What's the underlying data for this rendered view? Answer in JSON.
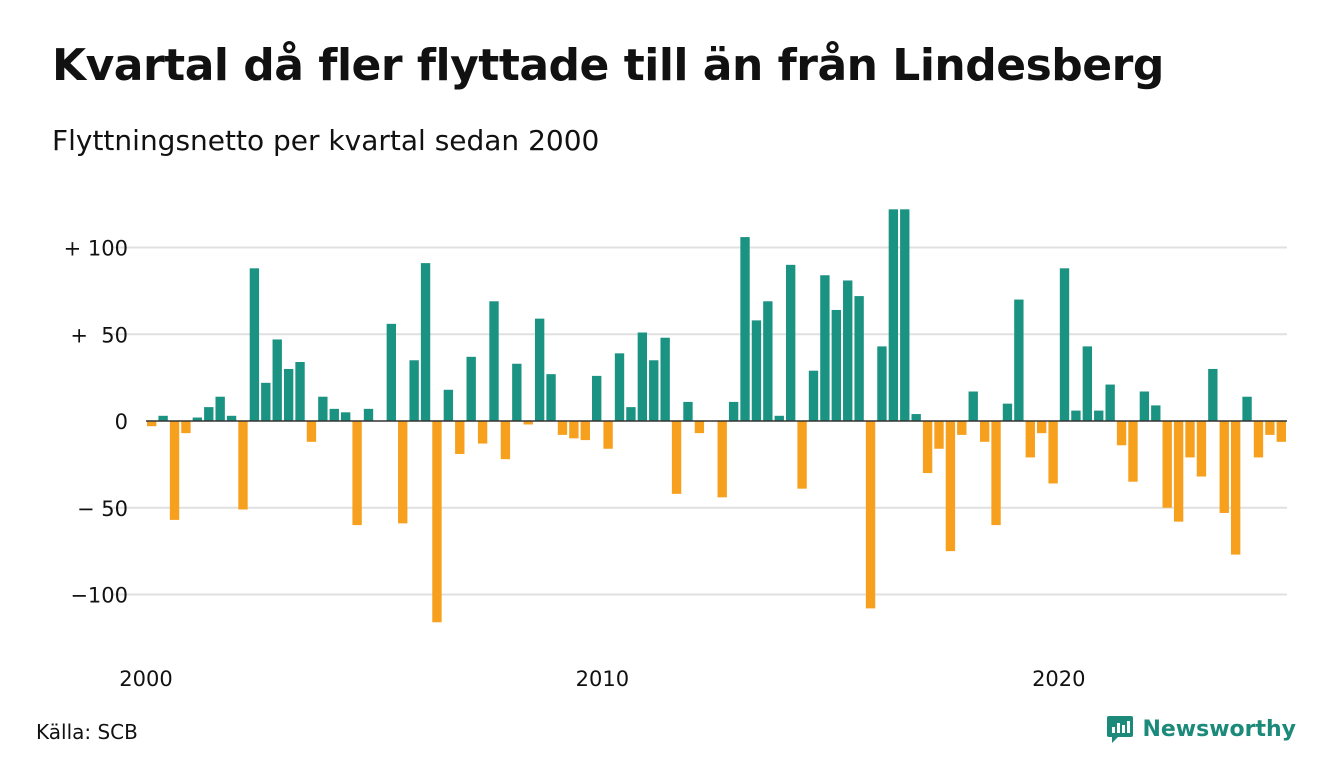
{
  "title": "Kvartal då fler flyttade till än från Lindesberg",
  "subtitle": "Flyttningsnetto per kvartal sedan 2000",
  "source": "Källa: SCB",
  "brand": "Newsworthy",
  "colors": {
    "positive": "#1b9382",
    "negative": "#f6a01e",
    "grid": "#e0e0e0",
    "zero_line": "#333333",
    "brand": "#1b8a7a"
  },
  "chart_data": {
    "type": "bar",
    "title": "Kvartal då fler flyttade till än från Lindesberg",
    "subtitle": "Flyttningsnetto per kvartal sedan 2000",
    "xlabel": "",
    "ylabel": "",
    "ylim": [
      -125,
      130
    ],
    "grid": true,
    "x_start": 2000,
    "y_ticks": [
      {
        "value": 100,
        "label": "+ 100"
      },
      {
        "value": 50,
        "label": "+  50"
      },
      {
        "value": 0,
        "label": "0"
      },
      {
        "value": -50,
        "label": "− 50"
      },
      {
        "value": -100,
        "label": "−100"
      }
    ],
    "x_ticks": [
      {
        "year": 2000,
        "label": "2000"
      },
      {
        "year": 2010,
        "label": "2010"
      },
      {
        "year": 2020,
        "label": "2020"
      }
    ],
    "values": [
      -3,
      3,
      -57,
      -7,
      2,
      8,
      14,
      3,
      -51,
      88,
      22,
      47,
      30,
      34,
      -12,
      14,
      7,
      5,
      -60,
      7,
      0,
      56,
      -59,
      35,
      91,
      -116,
      18,
      -19,
      37,
      -13,
      69,
      -22,
      33,
      -2,
      59,
      27,
      -8,
      -10,
      -11,
      26,
      -16,
      39,
      8,
      51,
      35,
      48,
      -42,
      11,
      -7,
      0,
      -44,
      11,
      106,
      58,
      69,
      3,
      90,
      -39,
      29,
      84,
      64,
      81,
      72,
      -108,
      43,
      122,
      122,
      4,
      -30,
      -16,
      -75,
      -8,
      17,
      -12,
      -60,
      10,
      70,
      -21,
      -7,
      -36,
      88,
      6,
      43,
      6,
      21,
      -14,
      -35,
      17,
      9,
      -50,
      -58,
      -21,
      -32,
      30,
      -53,
      -77,
      14,
      -21,
      -8,
      -12
    ]
  }
}
